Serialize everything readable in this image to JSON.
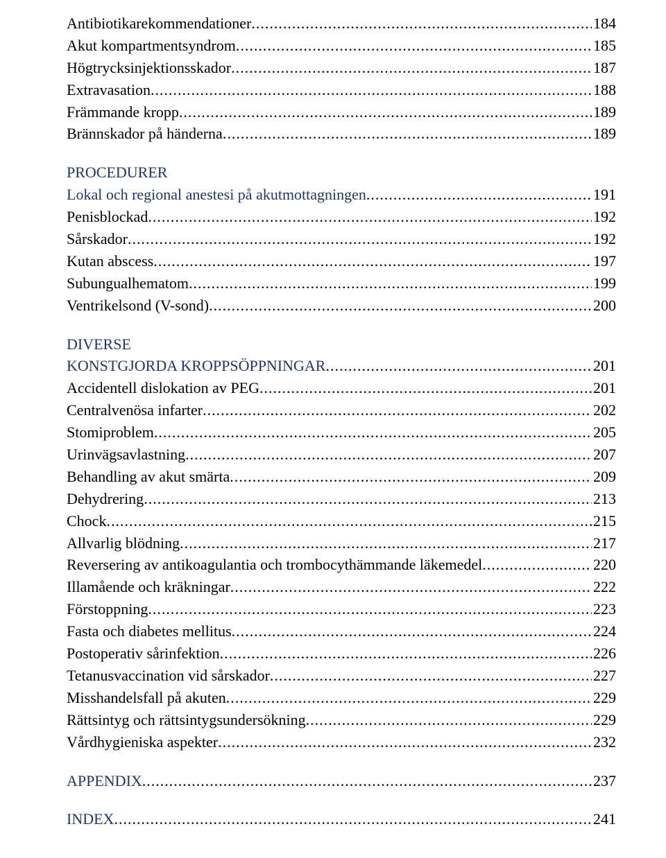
{
  "colors": {
    "text": "#000000",
    "heading": "#1f3863",
    "background": "#ffffff"
  },
  "fonts": {
    "body_family": "Times New Roman",
    "body_size_pt": 17,
    "heading_size_pt": 17
  },
  "blocks": [
    {
      "type": "entries",
      "items": [
        {
          "title": "Antibiotikarekommendationer",
          "page": "184"
        },
        {
          "title": "Akut kompartmentsyndrom",
          "page": "185"
        },
        {
          "title": "Högtrycksinjektionsskador",
          "page": "187"
        },
        {
          "title": "Extravasation",
          "page": "188"
        },
        {
          "title": "Främmande kropp",
          "page": "189"
        },
        {
          "title": "Brännskador på händerna",
          "page": "189"
        }
      ]
    },
    {
      "type": "section",
      "title": "PROCEDURER",
      "subtitle": "Lokal och regional anestesi på akutmottagningen",
      "subtitle_page": "191",
      "items": [
        {
          "title": "Penisblockad",
          "page": "192"
        },
        {
          "title": "Sårskador",
          "page": "192"
        },
        {
          "title": "Kutan abscess",
          "page": "197"
        },
        {
          "title": "Subungualhematom",
          "page": "199"
        },
        {
          "title": "Ventrikelsond (V-sond)",
          "page": "200"
        }
      ]
    },
    {
      "type": "section",
      "title": "DIVERSE",
      "subtitle": "KONSTGJORDA KROPPSÖPPNINGAR",
      "subtitle_page": "201",
      "items": [
        {
          "title": "Accidentell dislokation av PEG",
          "page": "201"
        },
        {
          "title": "Centralvenösa infarter",
          "page": "202"
        },
        {
          "title": "Stomiproblem",
          "page": "205"
        },
        {
          "title": "Urinvägsavlastning",
          "page": "207"
        },
        {
          "title": "Behandling av akut smärta",
          "page": "209"
        },
        {
          "title": "Dehydrering",
          "page": "213"
        },
        {
          "title": "Chock",
          "page": "215"
        },
        {
          "title": "Allvarlig blödning",
          "page": "217"
        },
        {
          "title": "Reversering av antikoagulantia och trombocythämmande läkemedel",
          "page": "220"
        },
        {
          "title": "Illamående och kräkningar",
          "page": "222"
        },
        {
          "title": "Förstoppning",
          "page": "223"
        },
        {
          "title": "Fasta och diabetes mellitus",
          "page": "224"
        },
        {
          "title": "Postoperativ sårinfektion",
          "page": "226"
        },
        {
          "title": "Tetanusvaccination vid sårskador",
          "page": "227"
        },
        {
          "title": "Misshandelsfall på akuten",
          "page": "229"
        },
        {
          "title": "Rättsintyg och rättsintygsundersökning",
          "page": "229"
        },
        {
          "title": "Vårdhygieniska aspekter",
          "page": "232"
        }
      ]
    },
    {
      "type": "tail",
      "items": [
        {
          "title": "APPENDIX",
          "page": "237"
        },
        {
          "title": "INDEX",
          "page": "241"
        }
      ]
    }
  ]
}
